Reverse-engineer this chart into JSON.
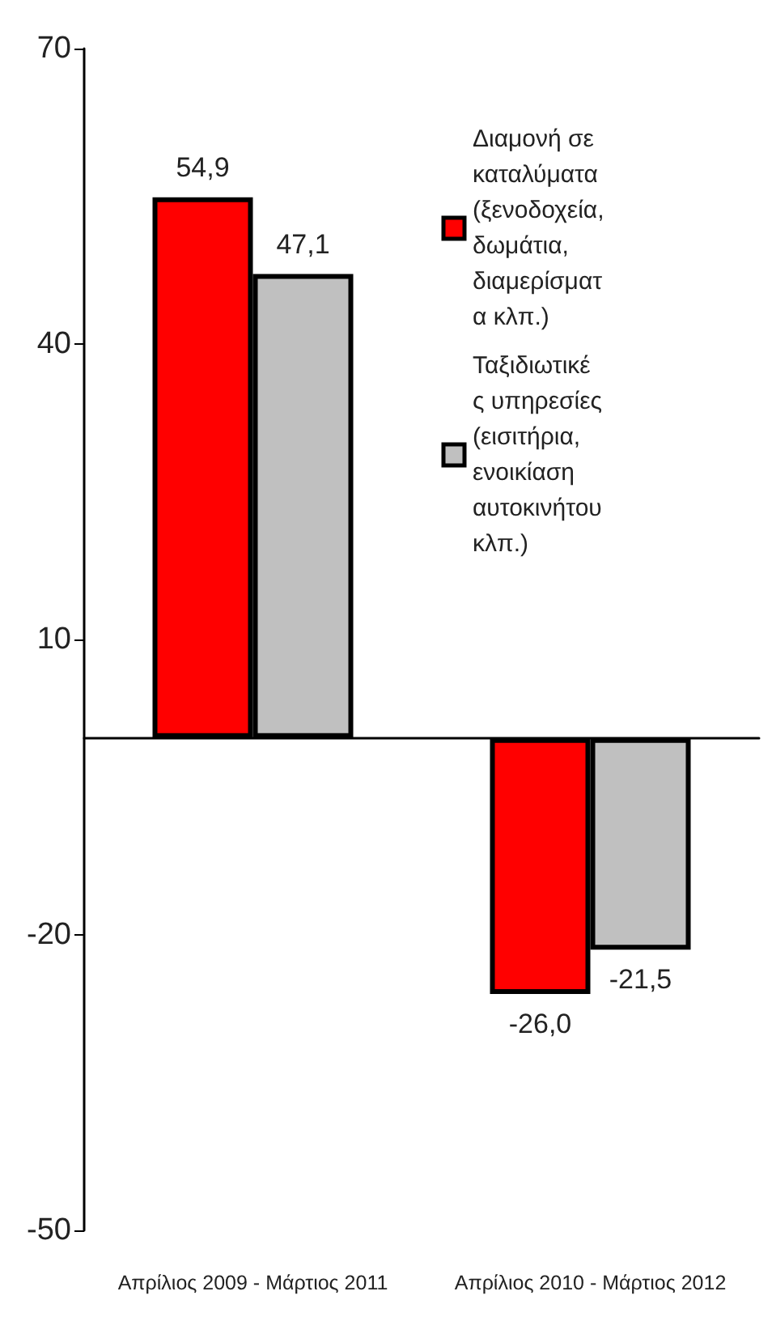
{
  "chart_data": {
    "type": "bar",
    "categories": [
      "Απρίλιος 2009 - Μάρτιος 2011",
      "Απρίλιος 2010 - Μάρτιος 2012"
    ],
    "series": [
      {
        "name": "Διαμονή σε καταλύματα (ξενοδοχεία, δωμάτια, διαμερίσματα κλπ.)",
        "color": "#ff0000",
        "values": [
          54.9,
          -26.0
        ],
        "value_labels": [
          "54,9",
          "-26,0"
        ]
      },
      {
        "name": "Ταξιδιωτικές υπηρεσίες (εισιτήρια, ενοικίαση αυτοκινήτου κλπ.)",
        "color": "#c0c0c0",
        "values": [
          47.1,
          -21.5
        ],
        "value_labels": [
          "47,1",
          "-21,5"
        ]
      }
    ],
    "ylim": [
      -50,
      70
    ],
    "yticks": [
      -50,
      -20,
      10,
      40,
      70
    ],
    "grid": false,
    "legend": "top right"
  }
}
